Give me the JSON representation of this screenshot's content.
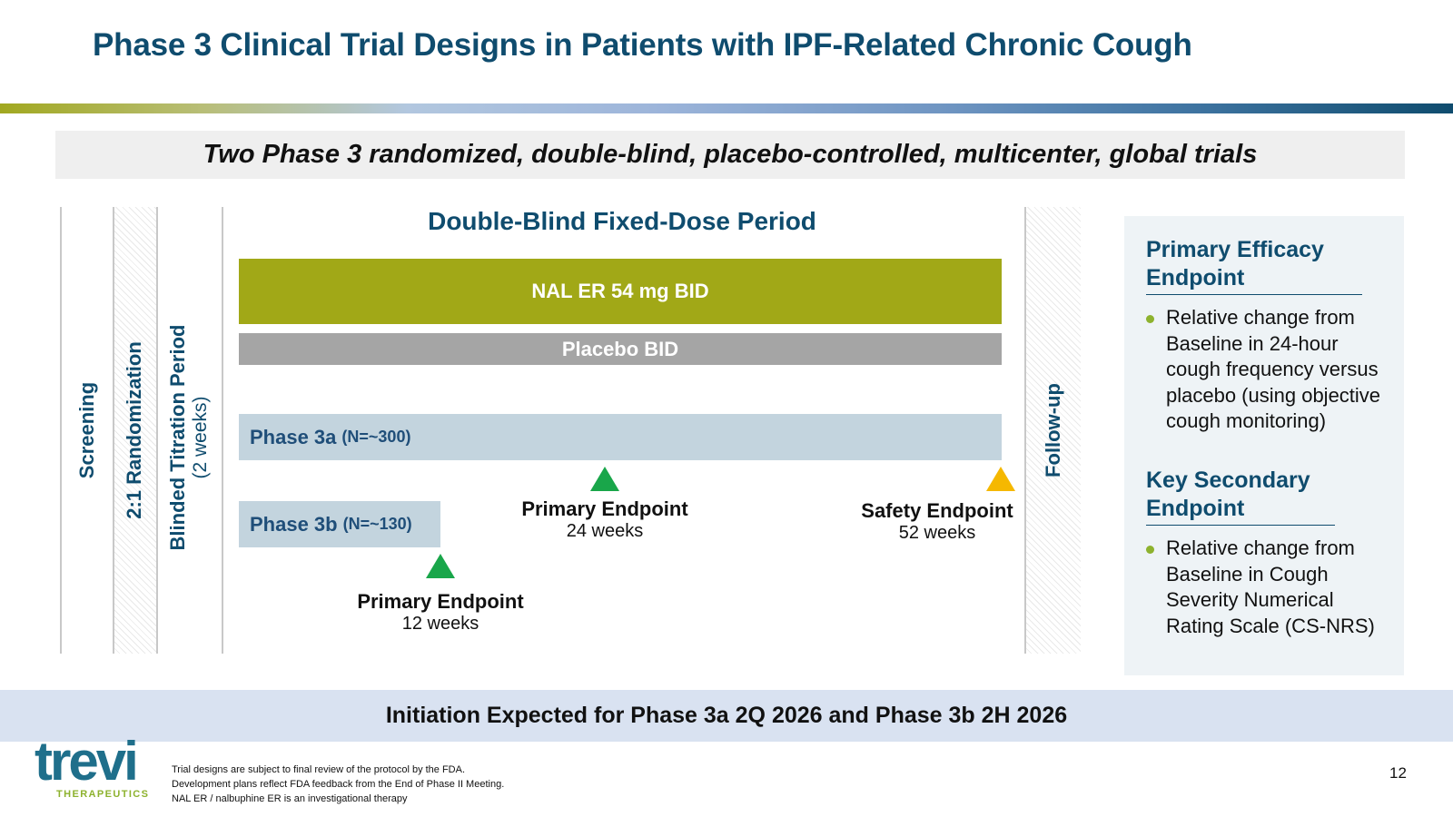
{
  "title": "Phase 3 Clinical Trial Designs in Patients with IPF-Related Chronic Cough",
  "subtitle": "Two Phase 3 randomized, double-blind, placebo-controlled, multicenter, global trials",
  "diagram": {
    "stages": {
      "screening": "Screening",
      "randomization": "2:1 Randomization",
      "titration": "Blinded Titration Period",
      "titration_duration": "(2 weeks)",
      "follow_up": "Follow-up"
    },
    "period_title": "Double-Blind Fixed-Dose Period",
    "arms": {
      "nal": "NAL ER 54 mg BID",
      "placebo": "Placebo BID"
    },
    "trials": {
      "phase3a_name": "Phase 3a",
      "phase3a_n": "(N=~300)",
      "phase3b_name": "Phase 3b",
      "phase3b_n": "(N=~130)"
    },
    "endpoints": {
      "primary_24_label": "Primary Endpoint",
      "primary_24_time": "24 weeks",
      "safety_52_label": "Safety Endpoint",
      "safety_52_time": "52 weeks",
      "primary_12_label": "Primary Endpoint",
      "primary_12_time": "12 weeks"
    },
    "colors": {
      "nal_bar": "#a1a817",
      "placebo_bar": "#a5a5a5",
      "trial_bar": "#c3d4de",
      "endpoint_primary": "#19a64a",
      "endpoint_safety": "#f5b800"
    }
  },
  "panel": {
    "primary_heading_line1": "Primary Efficacy",
    "primary_heading_line2": "Endpoint",
    "primary_bullet": "Relative change from Baseline in 24-hour cough frequency versus placebo (using objective cough monitoring)",
    "secondary_heading_line1": "Key Secondary",
    "secondary_heading_line2": "Endpoint",
    "secondary_bullet": "Relative change from Baseline in Cough Severity Numerical Rating Scale (CS-NRS)"
  },
  "bottom_banner": "Initiation Expected for Phase 3a 2Q 2026 and Phase 3b 2H 2026",
  "logo": {
    "word": "trevi",
    "tagline": "THERAPEUTICS"
  },
  "footnotes": [
    "Trial designs are subject to final review of the protocol by the FDA.",
    "Development plans reflect FDA feedback from the End of Phase II Meeting.",
    "NAL ER / nalbuphine ER is an investigational therapy"
  ],
  "page_number": "12"
}
